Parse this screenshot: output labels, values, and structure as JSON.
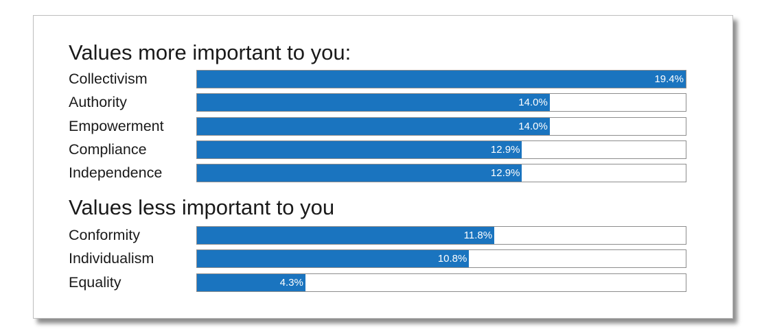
{
  "accent_color": "#1a74bf",
  "chart_data": {
    "type": "bar",
    "orientation": "horizontal",
    "unit": "%",
    "xlim": [
      0,
      19.4
    ],
    "groups": [
      {
        "title": "Values more important to you:",
        "categories": [
          "Collectivism",
          "Authority",
          "Empowerment",
          "Compliance",
          "Independence"
        ],
        "values": [
          19.4,
          14.0,
          14.0,
          12.9,
          12.9
        ],
        "labels": [
          "19.4%",
          "14.0%",
          "14.0%",
          "12.9%",
          "12.9%"
        ]
      },
      {
        "title": "Values less important to you",
        "categories": [
          "Conformity",
          "Individualism",
          "Equality"
        ],
        "values": [
          11.8,
          10.8,
          4.3
        ],
        "labels": [
          "11.8%",
          "10.8%",
          "4.3%"
        ]
      }
    ]
  }
}
